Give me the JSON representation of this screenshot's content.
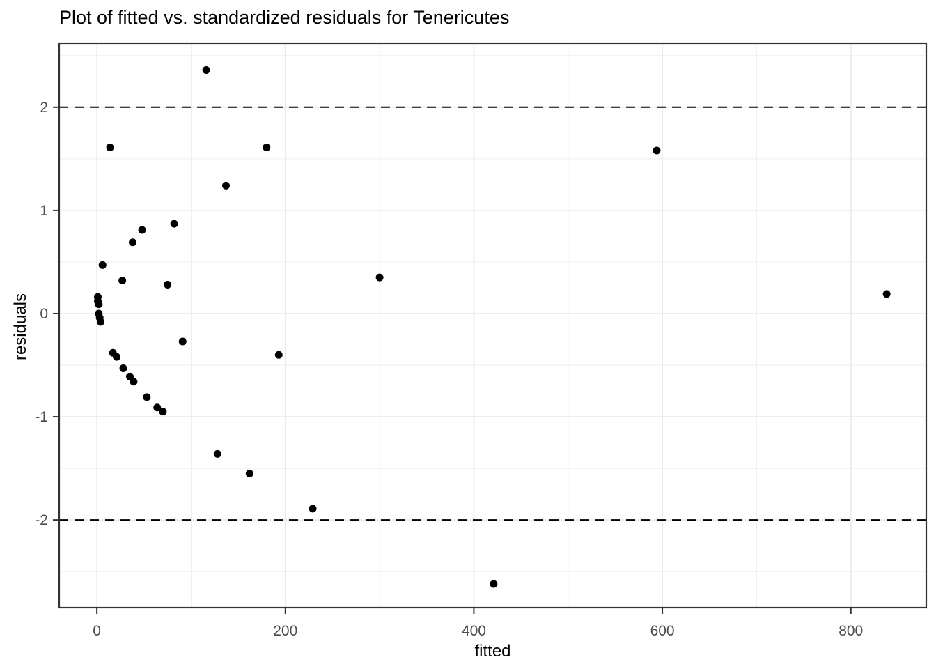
{
  "chart_data": {
    "type": "scatter",
    "title": "Plot of fitted vs. standardized residuals for Tenericutes",
    "xlabel": "fitted",
    "ylabel": "residuals",
    "xlim": [
      -40,
      880
    ],
    "ylim": [
      -2.85,
      2.62
    ],
    "x_ticks": [
      0,
      200,
      400,
      600,
      800
    ],
    "y_ticks": [
      2,
      1,
      0,
      -1,
      -2
    ],
    "x_minor_gridlines": [
      100,
      300,
      500,
      700
    ],
    "y_minor_gridlines": [
      2.5,
      1.5,
      0.5,
      -0.5,
      -1.5,
      -2.5
    ],
    "grid": "on",
    "legend": "none",
    "reference_lines": {
      "y_values": [
        2,
        -2
      ],
      "style": "dashed",
      "color": "#000000"
    },
    "series": [
      {
        "name": "standardized residuals",
        "marker": "filled-circle",
        "color": "#000000",
        "points": [
          [
            116,
            2.36
          ],
          [
            14,
            1.61
          ],
          [
            180,
            1.61
          ],
          [
            594,
            1.58
          ],
          [
            137,
            1.24
          ],
          [
            82,
            0.87
          ],
          [
            48,
            0.81
          ],
          [
            38,
            0.69
          ],
          [
            6,
            0.47
          ],
          [
            300,
            0.35
          ],
          [
            27,
            0.32
          ],
          [
            75,
            0.28
          ],
          [
            838,
            0.19
          ],
          [
            1,
            0.16
          ],
          [
            1,
            0.12
          ],
          [
            2,
            0.09
          ],
          [
            2,
            0.0
          ],
          [
            3,
            -0.04
          ],
          [
            4,
            -0.08
          ],
          [
            91,
            -0.27
          ],
          [
            17,
            -0.38
          ],
          [
            21,
            -0.42
          ],
          [
            193,
            -0.4
          ],
          [
            28,
            -0.53
          ],
          [
            35,
            -0.61
          ],
          [
            39,
            -0.66
          ],
          [
            53,
            -0.81
          ],
          [
            64,
            -0.91
          ],
          [
            70,
            -0.95
          ],
          [
            128,
            -1.36
          ],
          [
            162,
            -1.55
          ],
          [
            229,
            -1.89
          ],
          [
            421,
            -2.62
          ]
        ]
      }
    ]
  },
  "style_colors": {
    "background": "#ffffff",
    "panel_background": "#ffffff",
    "grid_major": "#ebebeb",
    "grid_minor": "#f0f0f0",
    "panel_border": "#333333",
    "tick_mark": "#333333",
    "tick_label": "#4d4d4d",
    "point": "#000000",
    "title_text": "#000000"
  }
}
